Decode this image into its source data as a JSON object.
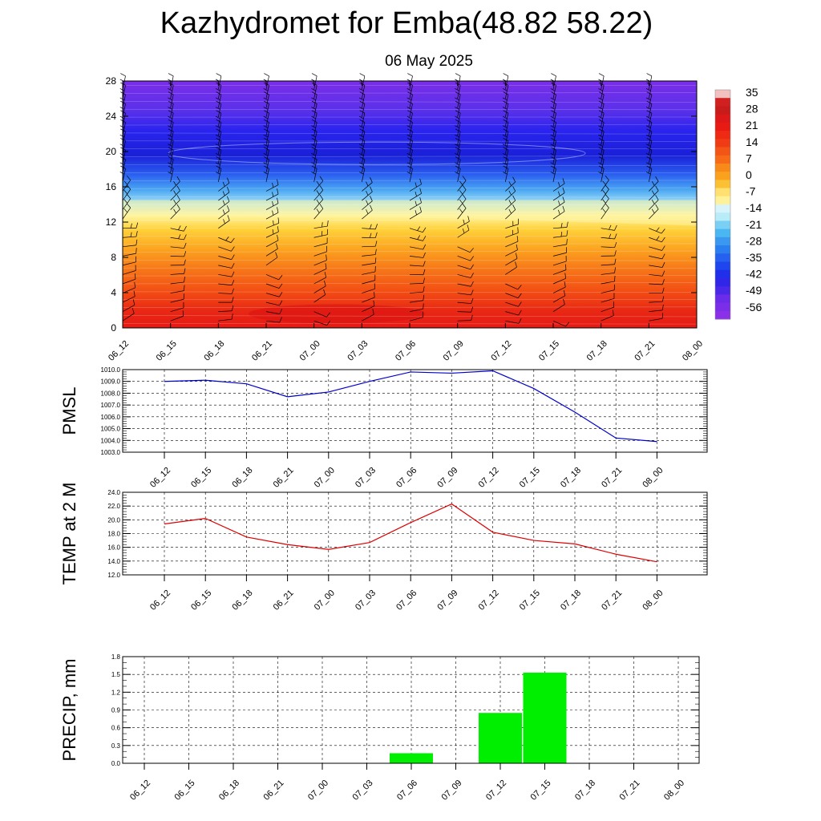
{
  "title": "Kazhydromet for Emba(48.82 58.22)",
  "subtitle": "06 May 2025",
  "time_labels": [
    "06_12",
    "06_15",
    "06_18",
    "06_21",
    "07_00",
    "07_03",
    "07_06",
    "07_09",
    "07_12",
    "07_15",
    "07_18",
    "07_21",
    "08_00"
  ],
  "colorbar": {
    "labels": [
      "35",
      "28",
      "21",
      "14",
      "7",
      "0",
      "-7",
      "-14",
      "-21",
      "-28",
      "-35",
      "-42",
      "-49",
      "-56"
    ],
    "colors": [
      "#f3c0c0",
      "#c81c1c",
      "#e01a1a",
      "#ee2a14",
      "#f35516",
      "#f88a1a",
      "#fcc034",
      "#fff09a",
      "#b8ecf8",
      "#4ab6f2",
      "#2a7ef0",
      "#1f45ee",
      "#3026e8",
      "#7a2ee8"
    ]
  },
  "chart_data": [
    {
      "type": "heatmap",
      "name": "cross-section",
      "y_ticks": [
        "0",
        "4",
        "8",
        "12",
        "16",
        "20",
        "24",
        "28"
      ],
      "ylim": [
        0,
        28
      ],
      "x": [
        "06_12",
        "06_15",
        "06_18",
        "06_21",
        "07_00",
        "07_03",
        "07_06",
        "07_09",
        "07_12",
        "07_15",
        "07_18",
        "07_21",
        "08_00"
      ],
      "levels": [
        0,
        4,
        8,
        12,
        16,
        20,
        24,
        28
      ],
      "values": [
        [
          28,
          26,
          24,
          27,
          29,
          28,
          26,
          28,
          27,
          24,
          23,
          23,
          23
        ],
        [
          22,
          21,
          20,
          20,
          21,
          22,
          21,
          22,
          21,
          19,
          18,
          18,
          18
        ],
        [
          10,
          10,
          10,
          10,
          10,
          10,
          10,
          10,
          10,
          9,
          9,
          9,
          9
        ],
        [
          -10,
          -10,
          -10,
          -10,
          -10,
          -10,
          -10,
          -10,
          -11,
          -11,
          -12,
          -13,
          -14
        ],
        [
          -35,
          -35,
          -35,
          -35,
          -35,
          -35,
          -35,
          -35,
          -35,
          -35,
          -35,
          -35,
          -35
        ],
        [
          -56,
          -56,
          -56,
          -56,
          -56,
          -56,
          -55,
          -55,
          -55,
          -55,
          -55,
          -55,
          -55
        ],
        [
          -62,
          -62,
          -62,
          -62,
          -62,
          -62,
          -62,
          -62,
          -62,
          -62,
          -62,
          -62,
          -62
        ],
        [
          -64,
          -64,
          -64,
          -64,
          -64,
          -64,
          -64,
          -64,
          -64,
          -64,
          -64,
          -64,
          -64
        ]
      ]
    },
    {
      "type": "line",
      "ylabel": "PMSL",
      "y_ticks": [
        "1010.0",
        "1009.0",
        "1008.0",
        "1007.0",
        "1006.0",
        "1005.0",
        "1004.0",
        "1003.0"
      ],
      "ylim": [
        1003,
        1010
      ],
      "x": [
        "06_12",
        "06_15",
        "06_18",
        "06_21",
        "07_00",
        "07_03",
        "07_06",
        "07_09",
        "07_12",
        "07_15",
        "07_18",
        "07_21",
        "08_00"
      ],
      "values": [
        1009.0,
        1009.1,
        1008.8,
        1007.7,
        1008.1,
        1009.0,
        1009.8,
        1009.7,
        1009.9,
        1008.4,
        1006.4,
        1004.2,
        1003.9
      ],
      "color": "#0000cc"
    },
    {
      "type": "line",
      "ylabel": "TEMP at 2 M",
      "y_ticks": [
        "24.0",
        "22.0",
        "20.0",
        "18.0",
        "16.0",
        "14.0",
        "12.0"
      ],
      "ylim": [
        12,
        24
      ],
      "x": [
        "06_12",
        "06_15",
        "06_18",
        "06_21",
        "07_00",
        "07_03",
        "07_06",
        "07_09",
        "07_12",
        "07_15",
        "07_18",
        "07_21",
        "08_00"
      ],
      "values": [
        19.4,
        20.2,
        17.5,
        16.4,
        15.7,
        16.7,
        19.6,
        22.3,
        18.2,
        17.0,
        16.5,
        15.0,
        13.9
      ],
      "color": "#dd0000"
    },
    {
      "type": "bar",
      "ylabel": "PRECIP, mm",
      "y_ticks": [
        "1.8",
        "1.5",
        "1.2",
        "0.9",
        "0.6",
        "0.3",
        "0.0"
      ],
      "ylim": [
        0,
        1.8
      ],
      "categories": [
        "06_12",
        "06_15",
        "06_18",
        "06_21",
        "07_00",
        "07_03",
        "07_06",
        "07_09",
        "07_12",
        "07_15",
        "07_18",
        "07_21",
        "08_00"
      ],
      "values": [
        0,
        0,
        0,
        0,
        0,
        0,
        0.17,
        0,
        0.85,
        1.53,
        0,
        0,
        0
      ],
      "color": "#00ee00"
    }
  ]
}
